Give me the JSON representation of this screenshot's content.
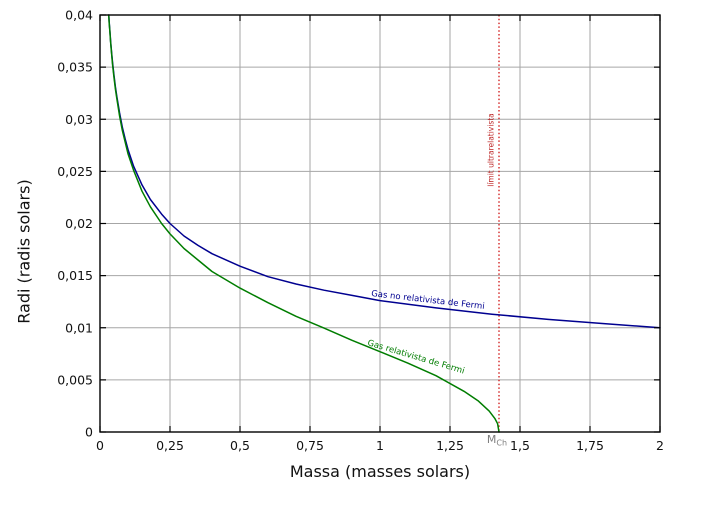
{
  "chart_data": {
    "type": "line",
    "title": "",
    "xlabel": "Massa (masses solars)",
    "ylabel": "Radi (radis solars)",
    "xlim": [
      0,
      2
    ],
    "ylim": [
      0,
      0.04
    ],
    "grid": true,
    "background": "#ffffff",
    "grid_color": "#a6a6a6",
    "x_ticks": {
      "values": [
        0,
        0.25,
        0.5,
        0.75,
        1,
        1.25,
        1.5,
        1.75,
        2
      ],
      "labels": [
        "0",
        "0,25",
        "0,5",
        "0,75",
        "1",
        "1,25",
        "1,5",
        "1,75",
        "2"
      ]
    },
    "y_ticks": {
      "values": [
        0,
        0.005,
        0.01,
        0.015,
        0.02,
        0.025,
        0.03,
        0.035,
        0.04
      ],
      "labels": [
        "0",
        "0,005",
        "0,01",
        "0,015",
        "0,02",
        "0,025",
        "0,03",
        "0,035",
        "0,04"
      ]
    },
    "series": [
      {
        "name": "Gas no relativista de Fermi",
        "color": "#000090",
        "points": [
          [
            0.0315,
            0.04
          ],
          [
            0.033,
            0.0393
          ],
          [
            0.035,
            0.0386
          ],
          [
            0.038,
            0.0375
          ],
          [
            0.041,
            0.0365
          ],
          [
            0.045,
            0.0354
          ],
          [
            0.05,
            0.0342
          ],
          [
            0.055,
            0.0331
          ],
          [
            0.06,
            0.0322
          ],
          [
            0.07,
            0.0306
          ],
          [
            0.08,
            0.0292
          ],
          [
            0.09,
            0.0281
          ],
          [
            0.1,
            0.0271
          ],
          [
            0.12,
            0.0255
          ],
          [
            0.15,
            0.0237
          ],
          [
            0.18,
            0.0223
          ],
          [
            0.22,
            0.0209
          ],
          [
            0.25,
            0.02
          ],
          [
            0.3,
            0.0188
          ],
          [
            0.35,
            0.0179
          ],
          [
            0.4,
            0.0171
          ],
          [
            0.5,
            0.0159
          ],
          [
            0.6,
            0.0149
          ],
          [
            0.7,
            0.0142
          ],
          [
            0.8,
            0.0136
          ],
          [
            0.9,
            0.0131
          ],
          [
            1.0,
            0.0126
          ],
          [
            1.2,
            0.0119
          ],
          [
            1.4,
            0.0113
          ],
          [
            1.6,
            0.0108
          ],
          [
            1.8,
            0.0104
          ],
          [
            2.0,
            0.01
          ]
        ]
      },
      {
        "name": "Gas relativista de Fermi",
        "color": "#007d00",
        "points": [
          [
            0.0309,
            0.04
          ],
          [
            0.033,
            0.0392
          ],
          [
            0.035,
            0.0385
          ],
          [
            0.038,
            0.0374
          ],
          [
            0.041,
            0.0364
          ],
          [
            0.045,
            0.0352
          ],
          [
            0.05,
            0.034
          ],
          [
            0.055,
            0.0329
          ],
          [
            0.06,
            0.032
          ],
          [
            0.07,
            0.0303
          ],
          [
            0.08,
            0.0289
          ],
          [
            0.09,
            0.0278
          ],
          [
            0.1,
            0.0267
          ],
          [
            0.12,
            0.0251
          ],
          [
            0.15,
            0.0231
          ],
          [
            0.18,
            0.0216
          ],
          [
            0.22,
            0.02
          ],
          [
            0.25,
            0.019
          ],
          [
            0.3,
            0.0176
          ],
          [
            0.35,
            0.0165
          ],
          [
            0.4,
            0.0154
          ],
          [
            0.5,
            0.0138
          ],
          [
            0.6,
            0.0124
          ],
          [
            0.7,
            0.0111
          ],
          [
            0.8,
            0.00997
          ],
          [
            0.9,
            0.0088
          ],
          [
            1.0,
            0.0077
          ],
          [
            1.1,
            0.0066
          ],
          [
            1.2,
            0.0054
          ],
          [
            1.3,
            0.0039
          ],
          [
            1.35,
            0.003
          ],
          [
            1.39,
            0.002
          ],
          [
            1.41,
            0.0013
          ],
          [
            1.42,
            0.0008
          ],
          [
            1.425,
            0.0
          ]
        ]
      }
    ],
    "annotations": {
      "vline_x": 1.425,
      "vline_color": "#cc0000",
      "vline_label": "límit ultrarelativista",
      "vline_label_color": "#bb2222",
      "x_marker_main": "M",
      "x_marker_sub": "Ch",
      "x_marker_color": "#7f7f7f"
    }
  }
}
